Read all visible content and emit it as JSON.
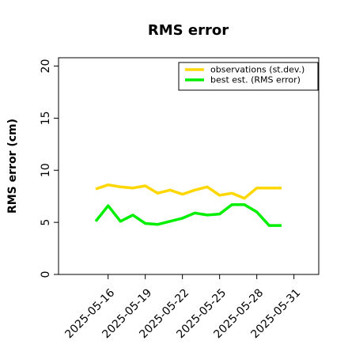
{
  "chart_data": {
    "type": "line",
    "title": "RMS error",
    "xlabel": "",
    "ylabel": "RMS error (cm)",
    "ylim": [
      0,
      20.8
    ],
    "yticks": [
      0,
      5,
      10,
      15,
      20
    ],
    "xlim": [
      "2025-05-12",
      "2025-06-02"
    ],
    "xticks": [
      "2025-05-16",
      "2025-05-19",
      "2025-05-22",
      "2025-05-25",
      "2025-05-28",
      "2025-05-31"
    ],
    "highlight_tick": "2025-05-22",
    "highlight_color": "#228b22",
    "grid": false,
    "legend_position": "top-right",
    "x": [
      "2025-05-15",
      "2025-05-16",
      "2025-05-17",
      "2025-05-18",
      "2025-05-19",
      "2025-05-20",
      "2025-05-21",
      "2025-05-22",
      "2025-05-23",
      "2025-05-24",
      "2025-05-25",
      "2025-05-26",
      "2025-05-27",
      "2025-05-28",
      "2025-05-29",
      "2025-05-30"
    ],
    "series": [
      {
        "name": "observations (st.dev.)",
        "color": "#ffd700",
        "values": [
          8.2,
          8.6,
          8.4,
          8.3,
          8.5,
          7.8,
          8.1,
          7.7,
          8.1,
          8.4,
          7.6,
          7.8,
          7.3,
          8.3,
          8.3,
          8.3
        ]
      },
      {
        "name": "best est. (RMS error)",
        "color": "#00ee00",
        "values": [
          5.1,
          6.6,
          5.1,
          5.7,
          4.9,
          4.8,
          5.1,
          5.4,
          5.9,
          5.7,
          5.8,
          6.7,
          6.7,
          6.0,
          4.7,
          4.7
        ]
      }
    ],
    "x_series_end": [
      "2025-05-30",
      "2025-05-30"
    ]
  }
}
